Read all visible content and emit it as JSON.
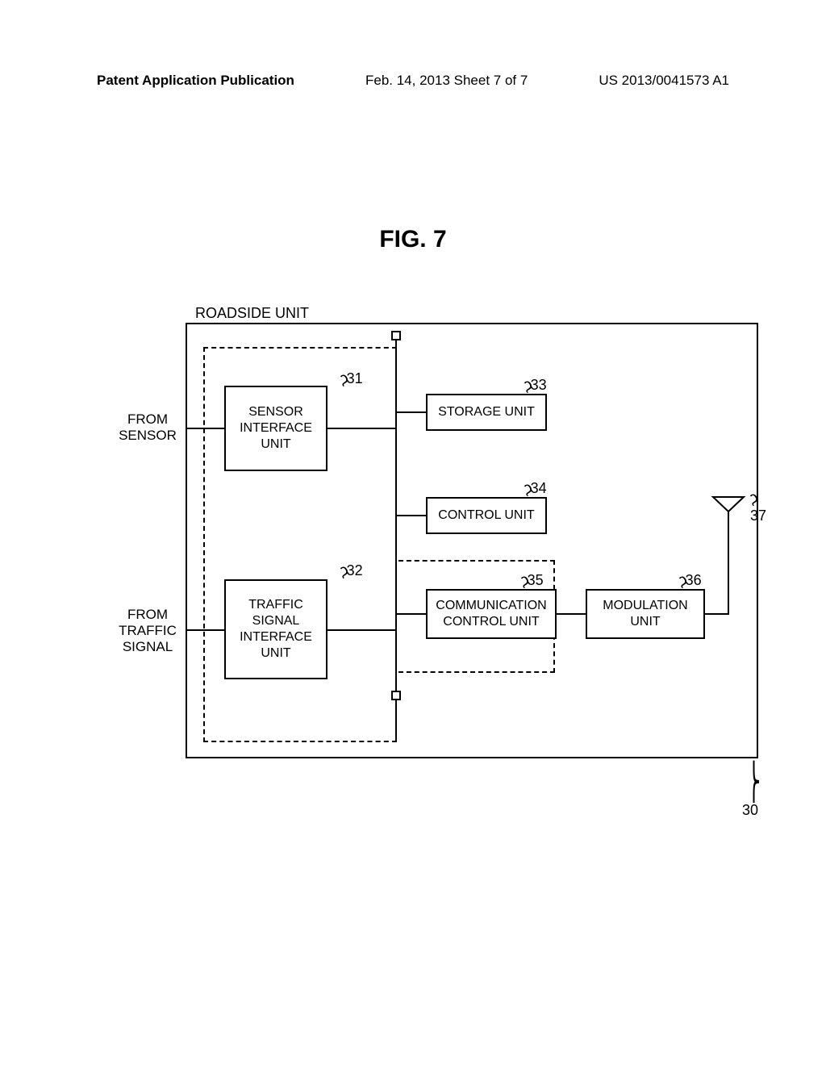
{
  "header": {
    "left": "Patent Application Publication",
    "mid": "Feb. 14, 2013  Sheet 7 of 7",
    "right": "US 2013/0041573 A1"
  },
  "fig_title": "FIG.  7",
  "outer_title": "ROADSIDE UNIT",
  "ext_labels": {
    "from_sensor": "FROM\nSENSOR",
    "from_traffic": "FROM\nTRAFFIC\nSIGNAL"
  },
  "boxes": {
    "b31": "SENSOR\nINTERFACE\nUNIT",
    "b32": "TRAFFIC\nSIGNAL\nINTERFACE\nUNIT",
    "b33": "STORAGE UNIT",
    "b34": "CONTROL UNIT",
    "b35": "COMMUNICATION\nCONTROL UNIT",
    "b36": "MODULATION\nUNIT"
  },
  "refs": {
    "r31": "31",
    "r32": "32",
    "r33": "33",
    "r34": "34",
    "r35": "35",
    "r36": "36",
    "r37": "37",
    "r30": "30"
  },
  "style": {
    "bg": "#ffffff",
    "line": "#000000",
    "font_main": 17,
    "font_box": 16,
    "font_ref": 18,
    "font_fig": 30
  }
}
